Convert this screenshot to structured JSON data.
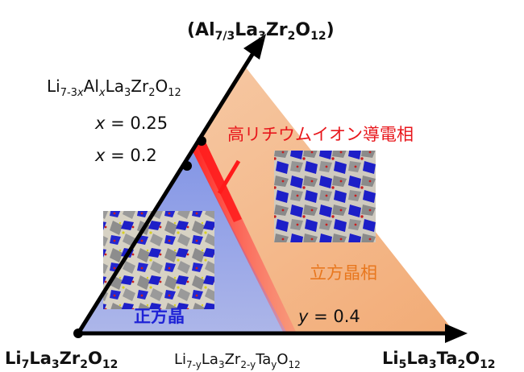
{
  "diagram": {
    "top_vertex": {
      "main": "(Al",
      "sub1": "7/3",
      "mid1": "La",
      "sub2": "3",
      "mid2": "Zr",
      "sub3": "2",
      "mid3": "O",
      "sub4": "12",
      "end": ")"
    },
    "left_vertex": {
      "a": "Li",
      "s1": "7",
      "b": "La",
      "s2": "3",
      "c": "Zr",
      "s3": "2",
      "d": "O",
      "s4": "12"
    },
    "right_vertex": {
      "a": "Li",
      "s1": "5",
      "b": "La",
      "s2": "3",
      "c": "Ta",
      "s3": "2",
      "d": "O",
      "s4": "12"
    },
    "left_edge_formula": {
      "a": "Li",
      "s1": "7-3",
      "s1x": "x",
      "b": "Al",
      "bx": "x",
      "c": "La",
      "s2": "3",
      "d": "Zr",
      "s3": "2",
      "e": "O",
      "s4": "12"
    },
    "bottom_edge_formula": {
      "a": "Li",
      "s1": "7-y",
      "b": "La",
      "s2": "3",
      "c": "Zr",
      "s3": "2-y",
      "d": "Ta",
      "s4": "y",
      "e": "O",
      "s5": "12"
    },
    "x_label_1": {
      "var": "x",
      "rest": " = 0.25"
    },
    "x_label_2": {
      "var": "x",
      "rest": " = 0.2"
    },
    "y_label": {
      "var": "y",
      "rest": " = 0.4"
    },
    "high_conductivity_label": "高リチウムイオン導電相",
    "cubic_label": "立方晶相",
    "tetragonal_label": "正方晶",
    "colors": {
      "cubic_region": "#f4b88a",
      "tetragonal_region": "#8fa2e8",
      "high_conductivity": "#ff2a2a",
      "octahedra": "#1d1fc8",
      "framework": "#8a8a8a"
    }
  }
}
